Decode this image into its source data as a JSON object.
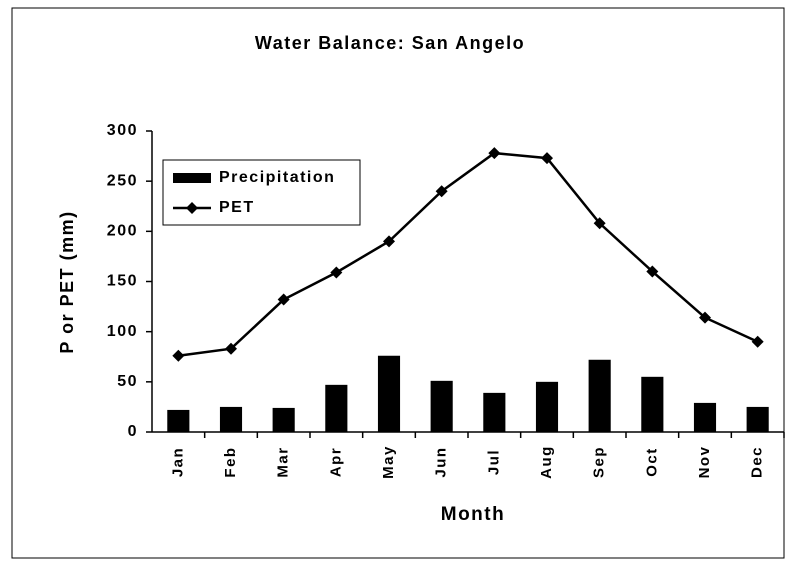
{
  "chart_data": {
    "type": "bar",
    "title": "Water Balance: San Angelo",
    "x_label": "Month",
    "y_label": "P or PET (mm)",
    "categories": [
      "Jan",
      "Feb",
      "Mar",
      "Apr",
      "May",
      "Jun",
      "Jul",
      "Aug",
      "Sep",
      "Oct",
      "Nov",
      "Dec"
    ],
    "series": [
      {
        "name": "Precipitation",
        "type": "bar",
        "color": "#000000",
        "values": [
          22,
          25,
          24,
          47,
          76,
          51,
          39,
          50,
          72,
          55,
          29,
          25
        ]
      },
      {
        "name": "PET",
        "type": "line",
        "color": "#000000",
        "values": [
          76,
          83,
          132,
          159,
          190,
          240,
          278,
          273,
          208,
          160,
          114,
          90
        ]
      }
    ],
    "ylim": [
      0,
      300
    ],
    "yticks": [
      0,
      50,
      100,
      150,
      200,
      250,
      300
    ],
    "grid": false,
    "legend": "upper-left"
  }
}
